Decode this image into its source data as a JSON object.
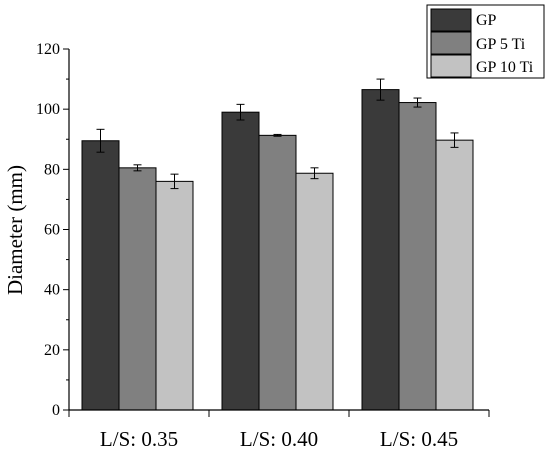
{
  "chart_data": {
    "type": "bar",
    "title": "",
    "xlabel": "",
    "ylabel": "Diameter (mm)",
    "ylim": [
      0,
      120
    ],
    "yticks": [
      "0",
      "20",
      "40",
      "60",
      "80",
      "100",
      "120"
    ],
    "categories": [
      "L/S: 0.35",
      "L/S: 0.40",
      "L/S: 0.45"
    ],
    "series": [
      {
        "name": "GP",
        "values": [
          89.5,
          99.0,
          106.5
        ],
        "errors": [
          3.8,
          2.6,
          3.5
        ],
        "color": "#3a3a3a"
      },
      {
        "name": "GP 5 Ti",
        "values": [
          80.5,
          91.3,
          102.2
        ],
        "errors": [
          1.0,
          0.3,
          1.5
        ],
        "color": "#808080"
      },
      {
        "name": "GP 10 Ti",
        "values": [
          76.0,
          78.7,
          89.7
        ],
        "errors": [
          2.4,
          1.8,
          2.4
        ],
        "color": "#c2c2c2"
      }
    ],
    "legend_position": "top-right",
    "grid": false
  }
}
